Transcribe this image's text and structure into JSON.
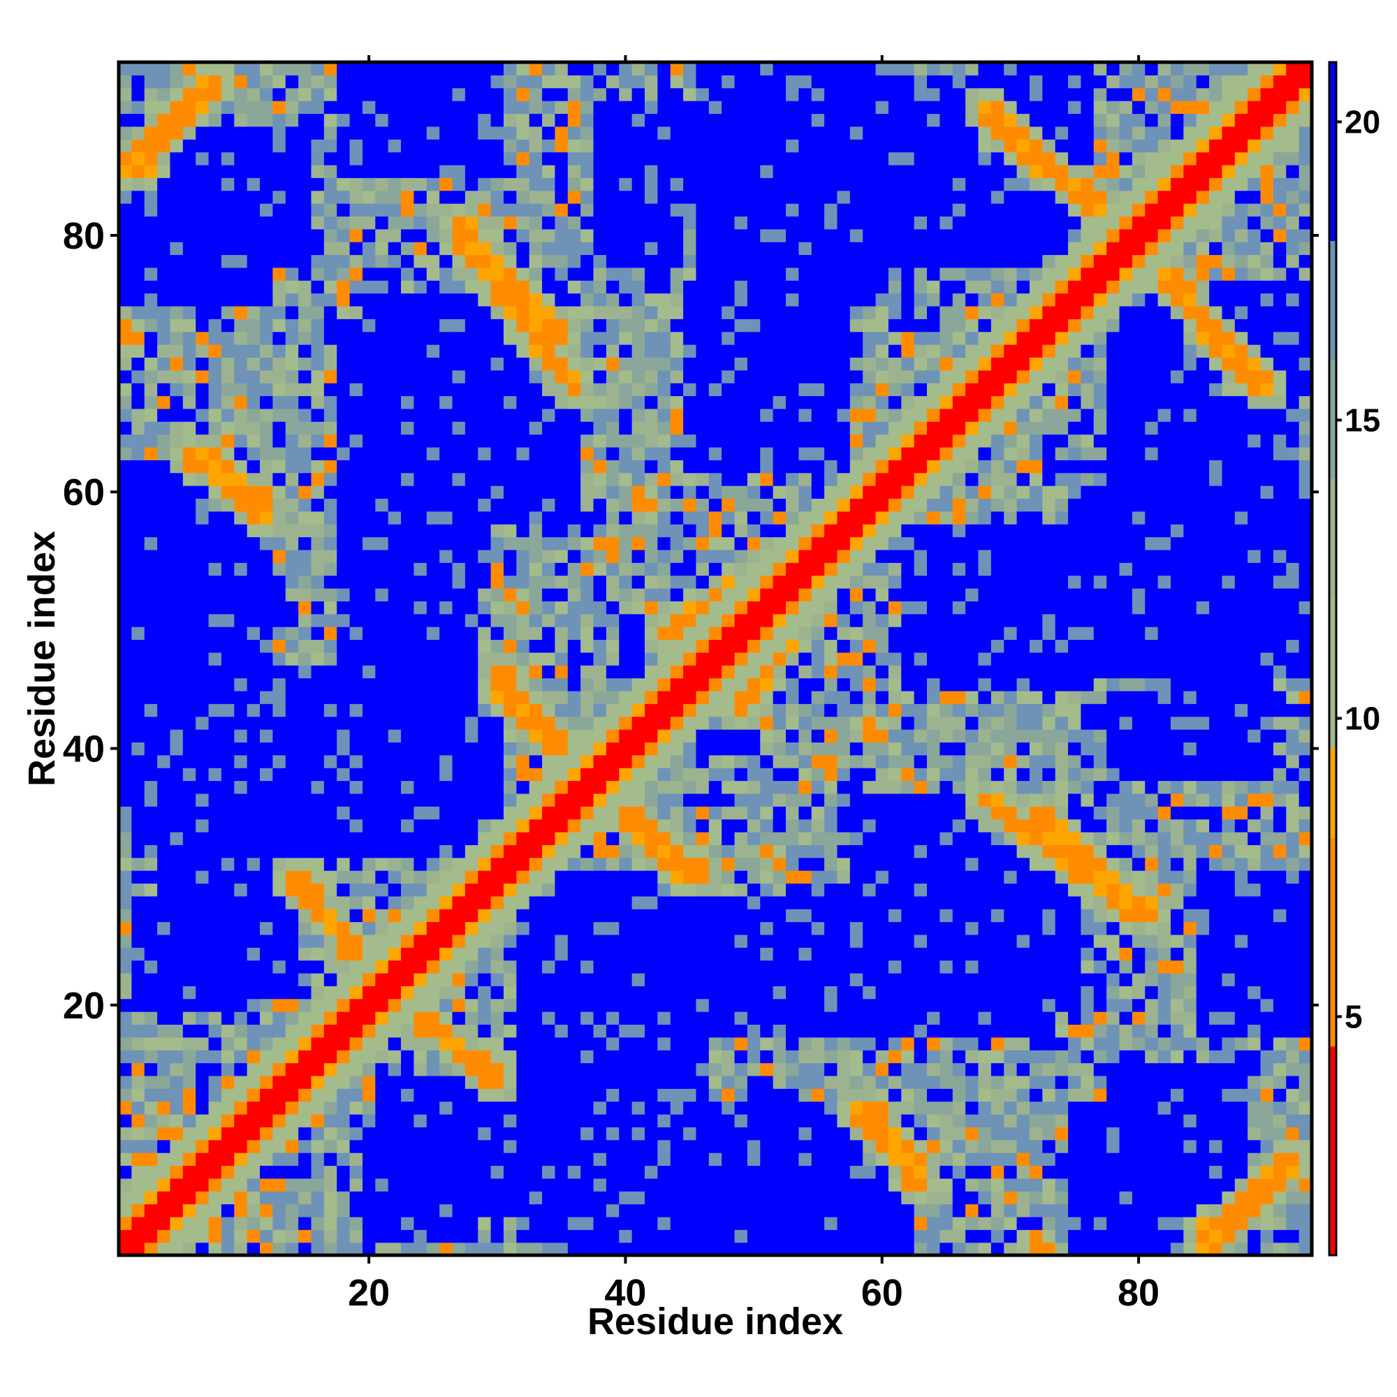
{
  "chart_data": {
    "type": "heatmap",
    "title": "",
    "xlabel": "Residue index",
    "ylabel": "Residue index",
    "n_residues": 93,
    "xlim": [
      0.5,
      93.5
    ],
    "ylim": [
      0.5,
      93.5
    ],
    "x_ticks": [
      20,
      40,
      60,
      80
    ],
    "y_ticks": [
      20,
      40,
      60,
      80
    ],
    "x_tick_labels": [
      "20",
      "40",
      "60",
      "80"
    ],
    "y_tick_labels": [
      "20",
      "40",
      "60",
      "80"
    ],
    "colorbar": {
      "range": [
        1,
        21
      ],
      "ticks": [
        5,
        10,
        15,
        20
      ],
      "tick_labels": [
        "5",
        "10",
        "15",
        "20"
      ],
      "colors": [
        {
          "max": 4.5,
          "color": "#ff0000"
        },
        {
          "max": 8.0,
          "color": "#ff8c00"
        },
        {
          "max": 9.5,
          "color": "#ffa500"
        },
        {
          "max": 12.0,
          "color": "#a4bb8c"
        },
        {
          "max": 14.0,
          "color": "#9db38f"
        },
        {
          "max": 16.0,
          "color": "#8aa79a"
        },
        {
          "max": 18.0,
          "color": "#6f93b6"
        },
        {
          "max": 21.0,
          "color": "#0000ff"
        }
      ]
    },
    "diagonal_width": 1,
    "contact_bands": [
      {
        "from": [
          2,
          85
        ],
        "to": [
          8,
          92
        ],
        "value": 7.5
      },
      {
        "from": [
          27,
          81
        ],
        "to": [
          35,
          72
        ],
        "value": 7.5
      },
      {
        "from": [
          7,
          63
        ],
        "to": [
          12,
          59
        ],
        "value": 7.5
      },
      {
        "from": [
          30,
          46
        ],
        "to": [
          36,
          38
        ],
        "value": 7.5
      },
      {
        "from": [
          69,
          88
        ],
        "to": [
          79,
          81
        ],
        "value": 7.5
      },
      {
        "from": [
          81,
          78
        ],
        "to": [
          90,
          68
        ],
        "value": 7.5
      },
      {
        "from": [
          68,
          36
        ],
        "to": [
          80,
          27
        ],
        "value": 7.5
      },
      {
        "from": [
          38,
          37
        ],
        "to": [
          45,
          30
        ],
        "value": 7.5
      },
      {
        "from": [
          58,
          12
        ],
        "to": [
          63,
          6
        ],
        "value": 7.5
      },
      {
        "from": [
          85,
          1
        ],
        "to": [
          92,
          8
        ],
        "value": 7.5
      },
      {
        "from": [
          14,
          30
        ],
        "to": [
          25,
          18
        ],
        "value": 8.0
      },
      {
        "from": [
          43,
          49
        ],
        "to": [
          58,
          59
        ],
        "value": 7.0
      }
    ],
    "background_blocks": [
      {
        "x": [
          3,
          15
        ],
        "y": [
          78,
          88
        ],
        "value": 21
      },
      {
        "x": [
          20,
          30
        ],
        "y": [
          63,
          75
        ],
        "value": 21
      },
      {
        "x": [
          38,
          44
        ],
        "y": [
          78,
          86
        ],
        "value": 21
      },
      {
        "x": [
          45,
          57
        ],
        "y": [
          62,
          76
        ],
        "value": 21
      },
      {
        "x": [
          60,
          72
        ],
        "y": [
          78,
          92
        ],
        "value": 21
      },
      {
        "x": [
          75,
          93
        ],
        "y": [
          46,
          60
        ],
        "value": 21
      },
      {
        "x": [
          1,
          12
        ],
        "y": [
          36,
          54
        ],
        "value": 21
      },
      {
        "x": [
          13,
          30
        ],
        "y": [
          36,
          42
        ],
        "value": 21
      },
      {
        "x": [
          32,
          46
        ],
        "y": [
          2,
          28
        ],
        "value": 21
      },
      {
        "x": [
          47,
          73
        ],
        "y": [
          18,
          28
        ],
        "value": 21
      },
      {
        "x": [
          58,
          73
        ],
        "y": [
          28,
          36
        ],
        "value": 21
      },
      {
        "x": [
          4,
          14
        ],
        "y": [
          21,
          31
        ],
        "value": 21
      },
      {
        "x": [
          83,
          90
        ],
        "y": [
          38,
          45
        ],
        "value": 21
      },
      {
        "x": [
          79,
          93
        ],
        "y": [
          68,
          76
        ],
        "value": 21
      },
      {
        "x": [
          85,
          93
        ],
        "y": [
          18,
          30
        ],
        "value": 21
      },
      {
        "x": [
          75,
          84
        ],
        "y": [
          1,
          12
        ],
        "value": 21
      },
      {
        "x": [
          45,
          58
        ],
        "y": [
          1,
          12
        ],
        "value": 21
      },
      {
        "x": [
          1,
          6
        ],
        "y": [
          56,
          62
        ],
        "value": 21
      },
      {
        "x": [
          40,
          50
        ],
        "y": [
          40,
          46
        ],
        "value": 21
      },
      {
        "x": [
          20,
          28
        ],
        "y": [
          2,
          10
        ],
        "value": 21
      }
    ]
  }
}
